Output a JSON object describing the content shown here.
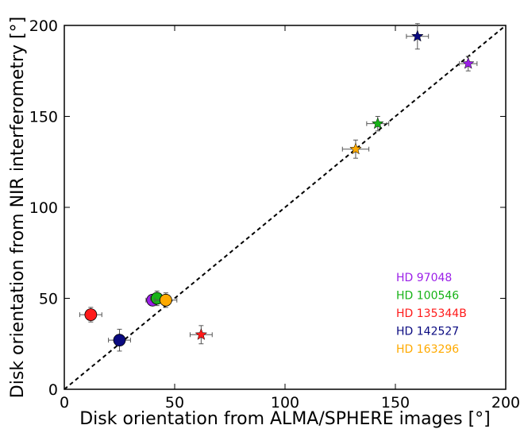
{
  "chart_data": {
    "type": "scatter",
    "xlabel": "Disk orientation from ALMA/SPHERE images [°]",
    "ylabel": "Disk orientation from NIR interferometry [°]",
    "xlim": [
      0,
      200
    ],
    "ylim": [
      0,
      200
    ],
    "xticks": [
      "0",
      "50",
      "100",
      "150",
      "200"
    ],
    "yticks": [
      "0",
      "50",
      "100",
      "150",
      "200"
    ],
    "grid": false,
    "legend_placement": "lower-right",
    "reference_line": {
      "style": "dashed",
      "color": "#000000",
      "from": [
        0,
        0
      ],
      "to": [
        200,
        200
      ]
    },
    "series": [
      {
        "name": "HD 97048",
        "color": "#9b1fe8",
        "points": [
          {
            "x": 40,
            "y": 49,
            "xerr": 3,
            "yerr": 3,
            "marker": "circle"
          },
          {
            "x": 183,
            "y": 179,
            "xerr": 4,
            "yerr": 4,
            "marker": "star"
          }
        ]
      },
      {
        "name": "HD 100546",
        "color": "#17b317",
        "points": [
          {
            "x": 42,
            "y": 50,
            "xerr": 3,
            "yerr": 4,
            "marker": "circle"
          },
          {
            "x": 142,
            "y": 146,
            "xerr": 5,
            "yerr": 4,
            "marker": "star"
          }
        ]
      },
      {
        "name": "HD 135344B",
        "color": "#ff1a1a",
        "points": [
          {
            "x": 12,
            "y": 41,
            "xerr": 5,
            "yerr": 4,
            "marker": "circle"
          },
          {
            "x": 62,
            "y": 30,
            "xerr": 5,
            "yerr": 5,
            "marker": "star"
          }
        ]
      },
      {
        "name": "HD 142527",
        "color": "#0a0a80",
        "points": [
          {
            "x": 25,
            "y": 27,
            "xerr": 5,
            "yerr": 6,
            "marker": "circle"
          },
          {
            "x": 160,
            "y": 194,
            "xerr": 5,
            "yerr": 7,
            "marker": "star"
          }
        ]
      },
      {
        "name": "HD 163296",
        "color": "#ffaa00",
        "points": [
          {
            "x": 46,
            "y": 49,
            "xerr": 5,
            "yerr": 4,
            "marker": "circle"
          },
          {
            "x": 132,
            "y": 132,
            "xerr": 6,
            "yerr": 5,
            "marker": "star"
          }
        ]
      }
    ]
  }
}
